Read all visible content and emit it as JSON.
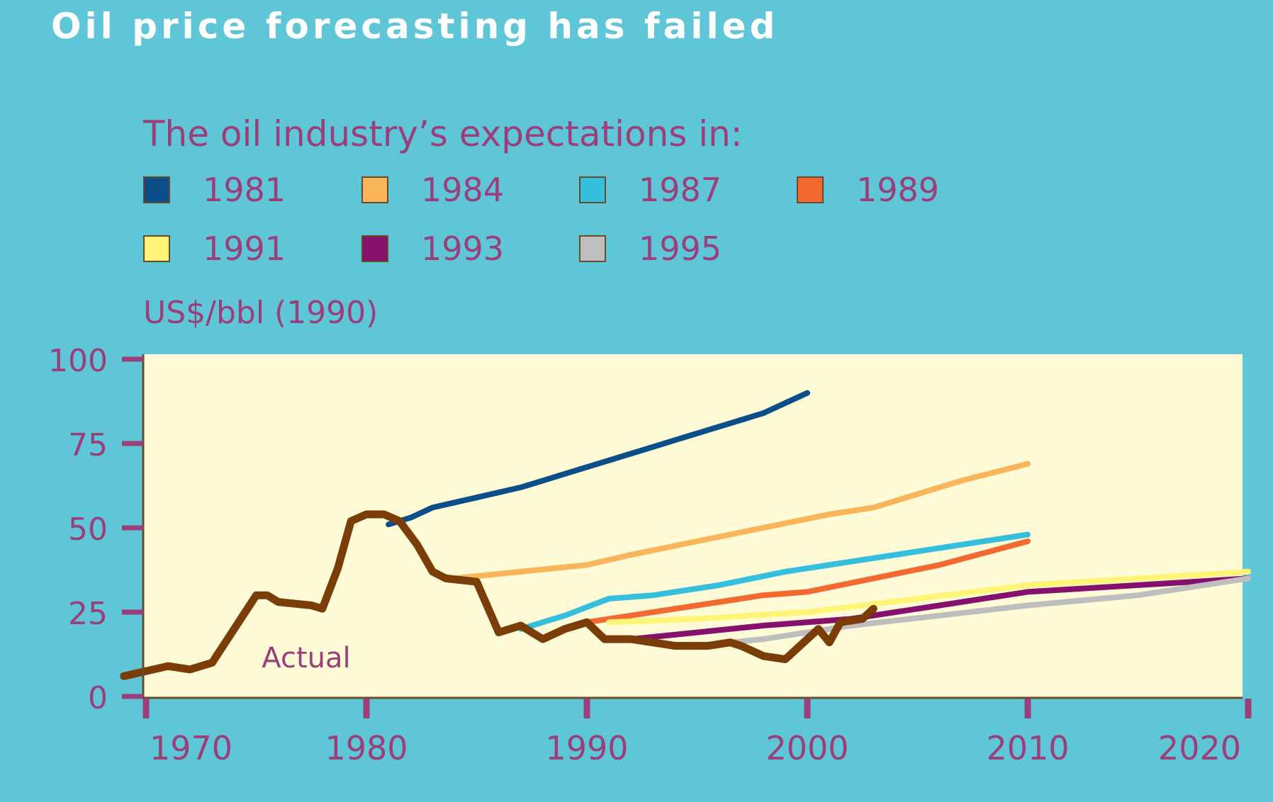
{
  "title": "Oil price forecasting has failed",
  "legend_title": "The oil industry’s expectations in:",
  "y_unit_label": "US$/bbl (1990)",
  "colors": {
    "background": "#5fc6d8",
    "plot_background": "#fffbd6",
    "text": "#9b3f7a",
    "axis": "#6b4a2a"
  },
  "chart_data": {
    "type": "line",
    "title": "Oil price forecasting has failed",
    "ylabel": "US$/bbl (1990)",
    "xlabel": "",
    "xlim": [
      1969,
      2021
    ],
    "ylim": [
      0,
      100
    ],
    "x_ticks": [
      1970,
      1980,
      1990,
      2000,
      2010,
      2020
    ],
    "y_ticks": [
      0,
      25,
      50,
      75,
      100
    ],
    "grid": false,
    "legend_position": "top",
    "annotations": [
      {
        "text": "Actual",
        "x": 1973,
        "y": 9
      }
    ],
    "series": [
      {
        "name": "1981",
        "color": "#0a4f8a",
        "points": [
          [
            1981,
            51
          ],
          [
            1982,
            53
          ],
          [
            1983,
            56
          ],
          [
            1985,
            59
          ],
          [
            1987,
            62
          ],
          [
            1988,
            64
          ],
          [
            1989,
            66
          ],
          [
            1991,
            70
          ],
          [
            1993,
            74
          ],
          [
            1994,
            76
          ],
          [
            1996,
            80
          ],
          [
            1998,
            84
          ],
          [
            1999,
            87
          ],
          [
            2000,
            90
          ]
        ]
      },
      {
        "name": "1984",
        "color": "#f9b55a",
        "points": [
          [
            1984,
            35
          ],
          [
            1987,
            37
          ],
          [
            1990,
            39
          ],
          [
            1992,
            42
          ],
          [
            1995,
            46
          ],
          [
            1998,
            50
          ],
          [
            2001,
            54
          ],
          [
            2003,
            56
          ],
          [
            2005,
            60
          ],
          [
            2007,
            64
          ],
          [
            2010,
            69
          ]
        ]
      },
      {
        "name": "1987",
        "color": "#33bfdd",
        "points": [
          [
            1987,
            20
          ],
          [
            1989,
            24
          ],
          [
            1991,
            29
          ],
          [
            1993,
            30
          ],
          [
            1996,
            33
          ],
          [
            1999,
            37
          ],
          [
            2002,
            40
          ],
          [
            2005,
            43
          ],
          [
            2010,
            48
          ]
        ]
      },
      {
        "name": "1989",
        "color": "#f26a32",
        "points": [
          [
            1990,
            22
          ],
          [
            1992,
            24
          ],
          [
            1995,
            27
          ],
          [
            1998,
            30
          ],
          [
            2000,
            31
          ],
          [
            2003,
            35
          ],
          [
            2006,
            39
          ],
          [
            2010,
            46
          ]
        ]
      },
      {
        "name": "1991",
        "color": "#fff475",
        "points": [
          [
            1991,
            22
          ],
          [
            1995,
            23
          ],
          [
            2000,
            25
          ],
          [
            2005,
            29
          ],
          [
            2010,
            33
          ],
          [
            2015,
            35
          ],
          [
            2020,
            37
          ]
        ]
      },
      {
        "name": "1993",
        "color": "#85106e",
        "points": [
          [
            1992,
            17
          ],
          [
            1995,
            19
          ],
          [
            1998,
            21
          ],
          [
            2002,
            23
          ],
          [
            2006,
            27
          ],
          [
            2010,
            31
          ],
          [
            2015,
            33
          ],
          [
            2020,
            35
          ]
        ]
      },
      {
        "name": "1995",
        "color": "#bebebe",
        "points": [
          [
            1995,
            15
          ],
          [
            1998,
            17
          ],
          [
            2002,
            21
          ],
          [
            2006,
            24
          ],
          [
            2010,
            27
          ],
          [
            2015,
            30
          ],
          [
            2020,
            35
          ]
        ]
      },
      {
        "name": "Actual",
        "color": "#7a3d07",
        "points": [
          [
            1969,
            6
          ],
          [
            1971,
            9
          ],
          [
            1972,
            8
          ],
          [
            1973,
            10
          ],
          [
            1974,
            20
          ],
          [
            1975,
            30
          ],
          [
            1975.5,
            30
          ],
          [
            1976,
            28
          ],
          [
            1977.5,
            27
          ],
          [
            1978,
            26
          ],
          [
            1978.7,
            38
          ],
          [
            1979.3,
            52
          ],
          [
            1980,
            54
          ],
          [
            1980.8,
            54
          ],
          [
            1981.5,
            52
          ],
          [
            1982.3,
            45
          ],
          [
            1983,
            37
          ],
          [
            1983.6,
            35
          ],
          [
            1985,
            34
          ],
          [
            1986,
            19
          ],
          [
            1987,
            21
          ],
          [
            1988,
            17
          ],
          [
            1989,
            20
          ],
          [
            1990,
            22
          ],
          [
            1990.8,
            17
          ],
          [
            1992,
            17
          ],
          [
            1993,
            16
          ],
          [
            1994,
            15
          ],
          [
            1995.5,
            15
          ],
          [
            1996.5,
            16
          ],
          [
            1997,
            15
          ],
          [
            1998,
            12
          ],
          [
            1999,
            11
          ],
          [
            2000,
            17
          ],
          [
            2000.5,
            20
          ],
          [
            2001,
            16
          ],
          [
            2001.5,
            22
          ],
          [
            2002.5,
            23
          ],
          [
            2003,
            26
          ]
        ]
      }
    ]
  }
}
